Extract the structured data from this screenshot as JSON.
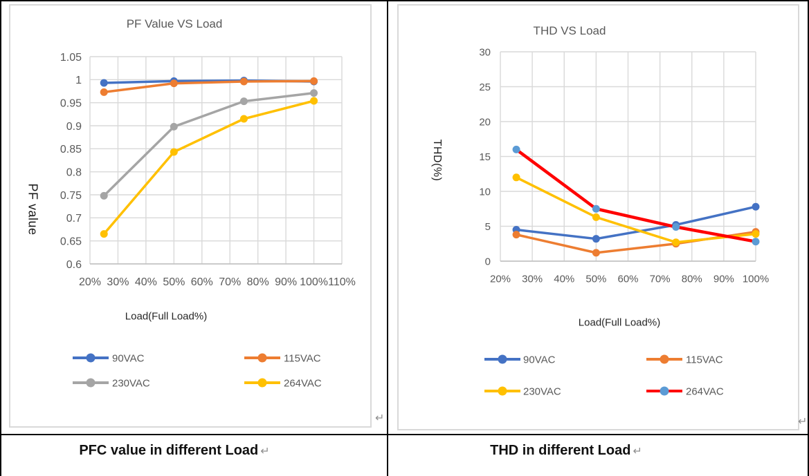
{
  "page": {
    "background": "#FFFFFF",
    "table_border_color": "#000000",
    "chart_border_color": "#D9D9D9"
  },
  "cells": [
    {
      "caption": "PFC value in different Load",
      "paragraph_mark": "↵",
      "end_of_cell_mark": "↵"
    },
    {
      "caption": "THD in different Load",
      "paragraph_mark": "↵",
      "end_of_cell_mark": "↵"
    }
  ],
  "chart_data": [
    {
      "type": "line",
      "title": "PF Value VS Load",
      "xlabel": "Load(Full Load%)",
      "ylabel": "PF value",
      "x": [
        25,
        50,
        75,
        100
      ],
      "xlim": [
        20,
        110
      ],
      "xtick_values": [
        20,
        30,
        40,
        50,
        60,
        70,
        80,
        90,
        100,
        110
      ],
      "xtick_labels": [
        "20%",
        "30%",
        "40%",
        "50%",
        "60%",
        "70%",
        "80%",
        "90%",
        "100%",
        "110%"
      ],
      "ylim": [
        0.6,
        1.05
      ],
      "ytick_values": [
        0.6,
        0.65,
        0.7,
        0.75,
        0.8,
        0.85,
        0.9,
        0.95,
        1,
        1.05
      ],
      "ytick_labels": [
        "0.6",
        "0.65",
        "0.7",
        "0.75",
        "0.8",
        "0.85",
        "0.9",
        "0.95",
        "1",
        "1.05"
      ],
      "grid": true,
      "legend_position": "bottom",
      "series": [
        {
          "name": "90VAC",
          "line_color": "#4472C4",
          "marker_color": "#4472C4",
          "values": [
            0.993,
            0.997,
            0.998,
            0.996
          ]
        },
        {
          "name": "115VAC",
          "line_color": "#ED7D31",
          "marker_color": "#ED7D31",
          "values": [
            0.973,
            0.992,
            0.996,
            0.997
          ]
        },
        {
          "name": "230VAC",
          "line_color": "#A5A5A5",
          "marker_color": "#A5A5A5",
          "values": [
            0.748,
            0.898,
            0.953,
            0.971
          ]
        },
        {
          "name": "264VAC",
          "line_color": "#FFC000",
          "marker_color": "#FFC000",
          "values": [
            0.665,
            0.843,
            0.915,
            0.954
          ]
        }
      ],
      "style": {
        "grid_color": "#D9D9D9",
        "axis_color": "#BFBFBF",
        "tick_color": "#595959",
        "title_color": "#595959",
        "axis_title_color": "#262626"
      }
    },
    {
      "type": "line",
      "title": "THD VS Load",
      "xlabel": "Load(Full Load%)",
      "ylabel": "THD(%)",
      "x": [
        25,
        50,
        75,
        100
      ],
      "xlim": [
        20,
        100
      ],
      "xtick_values": [
        20,
        30,
        40,
        50,
        60,
        70,
        80,
        90,
        100
      ],
      "xtick_labels": [
        "20%",
        "30%",
        "40%",
        "50%",
        "60%",
        "70%",
        "80%",
        "90%",
        "100%"
      ],
      "ylim": [
        0,
        30
      ],
      "ytick_values": [
        0,
        5,
        10,
        15,
        20,
        25,
        30
      ],
      "ytick_labels": [
        "0",
        "5",
        "10",
        "15",
        "20",
        "25",
        "30"
      ],
      "grid": true,
      "legend_position": "bottom",
      "series": [
        {
          "name": "90VAC",
          "line_color": "#4472C4",
          "marker_color": "#4472C4",
          "values": [
            4.5,
            3.2,
            5.2,
            7.8
          ]
        },
        {
          "name": "115VAC",
          "line_color": "#ED7D31",
          "marker_color": "#ED7D31",
          "values": [
            3.8,
            1.2,
            2.5,
            4.2
          ]
        },
        {
          "name": "230VAC",
          "line_color": "#FFC000",
          "marker_color": "#FFC000",
          "values": [
            12,
            6.3,
            2.7,
            3.9
          ]
        },
        {
          "name": "264VAC",
          "line_color": "#FF0000",
          "marker_color": "#5B9BD5",
          "values": [
            16,
            7.5,
            4.9,
            2.8
          ],
          "line_width": 4.5
        }
      ],
      "style": {
        "grid_color": "#D9D9D9",
        "axis_color": "#BFBFBF",
        "tick_color": "#595959",
        "title_color": "#595959",
        "axis_title_color": "#262626"
      }
    }
  ]
}
